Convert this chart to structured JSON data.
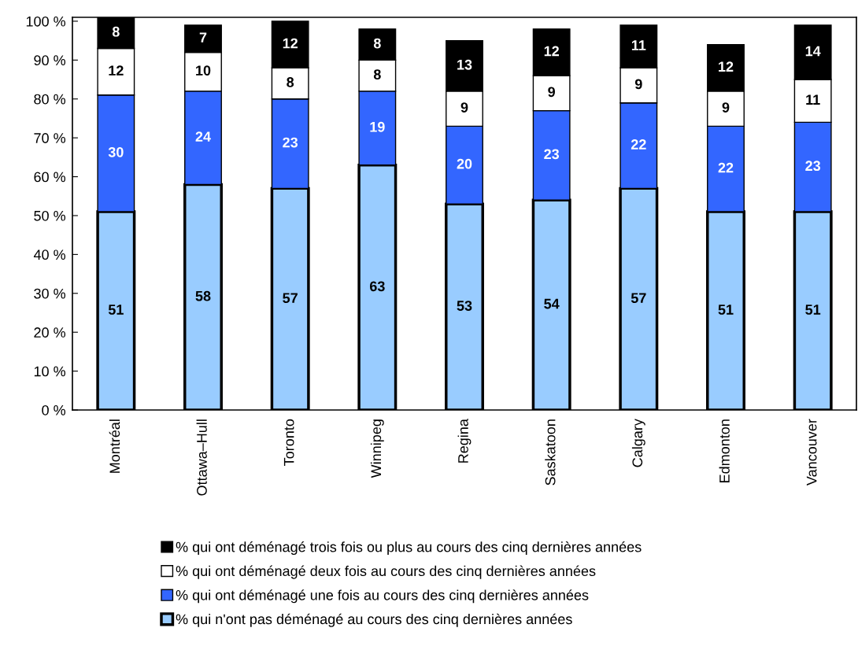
{
  "chart_data": {
    "type": "bar",
    "stacked": true,
    "categories": [
      "Montréal",
      "Ottawa–Hull",
      "Toronto",
      "Winnipeg",
      "Regina",
      "Saskatoon",
      "Calgary",
      "Edmonton",
      "Vancouver"
    ],
    "series": [
      {
        "name": "% qui n'ont pas déménagé au cours des cinq dernières années",
        "color": "#99ccff",
        "values": [
          51,
          58,
          57,
          63,
          53,
          54,
          57,
          51,
          51
        ]
      },
      {
        "name": "% qui ont déménagé une fois au cours des cinq dernières années",
        "color": "#3366ff",
        "values": [
          30,
          24,
          23,
          19,
          20,
          23,
          22,
          22,
          23
        ]
      },
      {
        "name": "% qui ont déménagé deux fois au cours des cinq dernières années",
        "color": "#ffffff",
        "values": [
          12,
          10,
          8,
          8,
          9,
          9,
          9,
          9,
          11
        ]
      },
      {
        "name": "% qui ont déménagé trois fois ou plus au cours des cinq dernières années",
        "color": "#000000",
        "values": [
          8,
          7,
          12,
          8,
          13,
          12,
          11,
          12,
          14
        ]
      }
    ],
    "ylim": [
      0,
      101
    ],
    "yticks": [
      {
        "value": 0,
        "label": "0 %"
      },
      {
        "value": 10,
        "label": "10 %"
      },
      {
        "value": 20,
        "label": "20 %"
      },
      {
        "value": 30,
        "label": "30 %"
      },
      {
        "value": 40,
        "label": "40 %"
      },
      {
        "value": 50,
        "label": "50 %"
      },
      {
        "value": 60,
        "label": "60 %"
      },
      {
        "value": 70,
        "label": "70 %"
      },
      {
        "value": 80,
        "label": "80 %"
      },
      {
        "value": 90,
        "label": "90 %"
      },
      {
        "value": 100,
        "label": "100 %"
      }
    ],
    "data_labels": true,
    "grid": false,
    "legend": "bottom"
  }
}
